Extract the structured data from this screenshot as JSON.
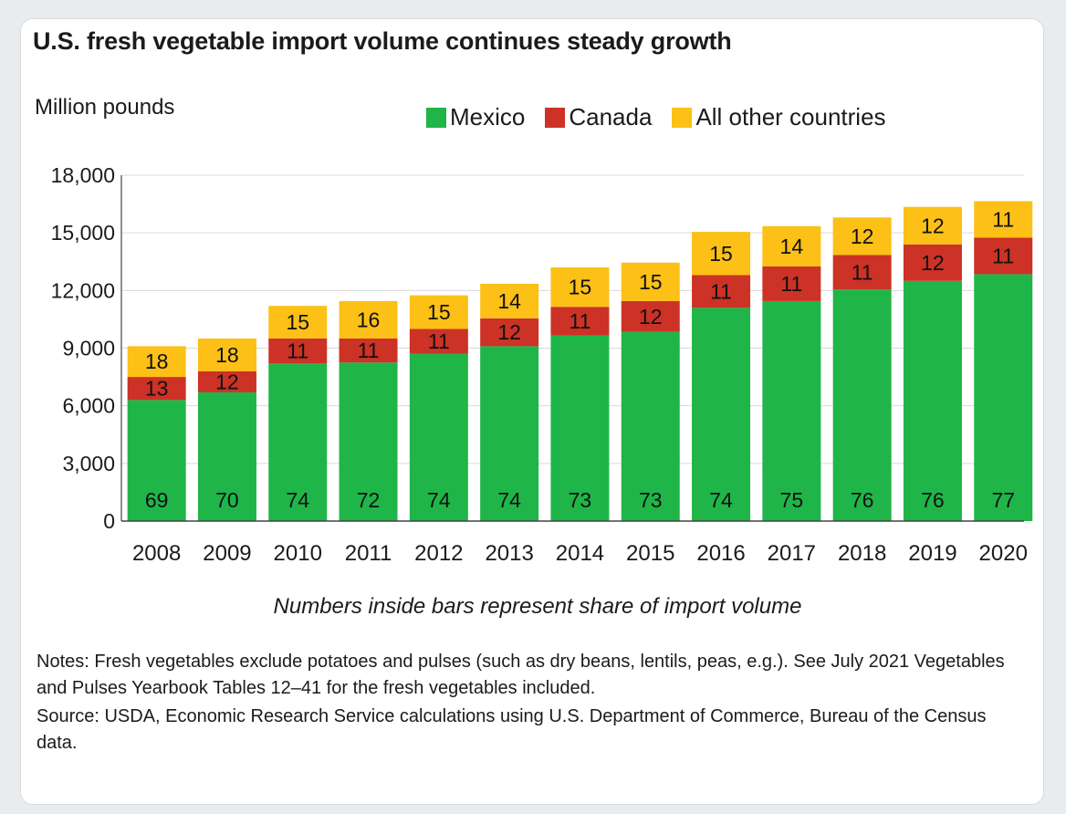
{
  "title": "U.S. fresh vegetable import volume continues steady growth",
  "unit_label": "Million pounds",
  "caption": "Numbers inside bars represent share of import volume",
  "notes": "Notes: Fresh vegetables exclude potatoes and pulses (such as dry beans, lentils, peas, e.g.). See July 2021 Vegetables and Pulses Yearbook Tables 12–41 for the fresh vegetables included.",
  "source": "Source: USDA, Economic Research Service calculations using U.S. Department of Commerce, Bureau of the Census data.",
  "chart_data": {
    "type": "bar",
    "stacked": true,
    "categories": [
      "2008",
      "2009",
      "2010",
      "2011",
      "2012",
      "2013",
      "2014",
      "2015",
      "2016",
      "2017",
      "2018",
      "2019",
      "2020"
    ],
    "ylim": [
      0,
      18000
    ],
    "yticks": [
      0,
      3000,
      6000,
      9000,
      12000,
      15000,
      18000
    ],
    "ytick_labels": [
      "0",
      "3,000",
      "6,000",
      "9,000",
      "12,000",
      "15,000",
      "18,000"
    ],
    "legend_position": "top-right",
    "series": [
      {
        "name": "Mexico",
        "color": "#1fb548",
        "values": [
          6300,
          6700,
          8200,
          8250,
          8700,
          9100,
          9650,
          9850,
          11100,
          11450,
          12050,
          12500,
          12850
        ],
        "share_labels": [
          "69",
          "70",
          "74",
          "72",
          "74",
          "74",
          "73",
          "73",
          "74",
          "75",
          "76",
          "76",
          "77"
        ]
      },
      {
        "name": "Canada",
        "color": "#cc3225",
        "values": [
          1200,
          1100,
          1300,
          1250,
          1300,
          1450,
          1500,
          1600,
          1700,
          1800,
          1800,
          1900,
          1900
        ],
        "share_labels": [
          "13",
          "12",
          "11",
          "11",
          "11",
          "12",
          "11",
          "12",
          "11",
          "11",
          "11",
          "12",
          "11"
        ]
      },
      {
        "name": "All other countries",
        "color": "#fcc016",
        "values": [
          1600,
          1700,
          1700,
          1950,
          1750,
          1800,
          2050,
          2000,
          2250,
          2100,
          1950,
          1950,
          1900
        ],
        "share_labels": [
          "18",
          "18",
          "15",
          "16",
          "15",
          "14",
          "15",
          "15",
          "15",
          "14",
          "12",
          "12",
          "11"
        ]
      }
    ]
  }
}
